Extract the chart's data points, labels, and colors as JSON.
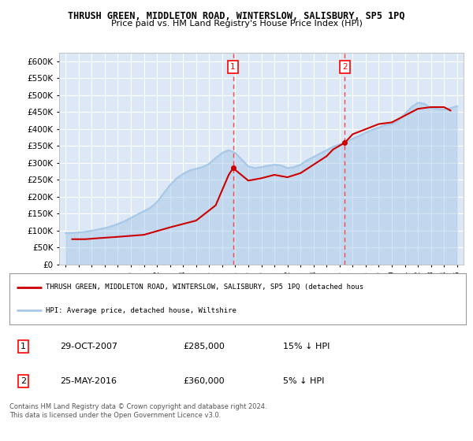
{
  "title": "THRUSH GREEN, MIDDLETON ROAD, WINTERSLOW, SALISBURY, SP5 1PQ",
  "subtitle": "Price paid vs. HM Land Registry's House Price Index (HPI)",
  "bg_color": "#ffffff",
  "plot_bg_color": "#dce8f5",
  "grid_color": "#ffffff",
  "ylim": [
    0,
    625000
  ],
  "yticks": [
    0,
    50000,
    100000,
    150000,
    200000,
    250000,
    300000,
    350000,
    400000,
    450000,
    500000,
    550000,
    600000
  ],
  "ytick_labels": [
    "£0",
    "£50K",
    "£100K",
    "£150K",
    "£200K",
    "£250K",
    "£300K",
    "£350K",
    "£400K",
    "£450K",
    "£500K",
    "£550K",
    "£600K"
  ],
  "marker1_x": 2007.83,
  "marker1_y": 285000,
  "marker2_x": 2016.4,
  "marker2_y": 360000,
  "sale1_date": "29-OCT-2007",
  "sale1_price": "£285,000",
  "sale1_hpi": "15% ↓ HPI",
  "sale2_date": "25-MAY-2016",
  "sale2_price": "£360,000",
  "sale2_hpi": "5% ↓ HPI",
  "legend_line1": "THRUSH GREEN, MIDDLETON ROAD, WINTERSLOW, SALISBURY, SP5 1PQ (detached hous",
  "legend_line2": "HPI: Average price, detached house, Wiltshire",
  "footer": "Contains HM Land Registry data © Crown copyright and database right 2024.\nThis data is licensed under the Open Government Licence v3.0.",
  "hpi_color": "#a8c8e8",
  "price_color": "#cc0000",
  "hpi_x": [
    1995,
    1995.5,
    1996,
    1996.5,
    1997,
    1997.5,
    1998,
    1998.5,
    1999,
    1999.5,
    2000,
    2000.5,
    2001,
    2001.5,
    2002,
    2002.5,
    2003,
    2003.5,
    2004,
    2004.5,
    2005,
    2005.5,
    2006,
    2006.5,
    2007,
    2007.5,
    2008,
    2008.5,
    2009,
    2009.5,
    2010,
    2010.5,
    2011,
    2011.5,
    2012,
    2012.5,
    2013,
    2013.5,
    2014,
    2014.5,
    2015,
    2015.5,
    2016,
    2016.5,
    2017,
    2017.5,
    2018,
    2018.5,
    2019,
    2019.5,
    2020,
    2020.5,
    2021,
    2021.5,
    2022,
    2022.5,
    2023,
    2023.5,
    2024,
    2024.5,
    2025
  ],
  "hpi_y": [
    93000,
    94000,
    95000,
    97000,
    100000,
    104000,
    108000,
    113000,
    120000,
    128000,
    138000,
    148000,
    158000,
    168000,
    185000,
    210000,
    235000,
    255000,
    268000,
    278000,
    283000,
    288000,
    298000,
    315000,
    330000,
    338000,
    330000,
    310000,
    290000,
    285000,
    288000,
    292000,
    295000,
    293000,
    285000,
    288000,
    295000,
    308000,
    318000,
    328000,
    338000,
    348000,
    355000,
    362000,
    372000,
    380000,
    390000,
    398000,
    405000,
    412000,
    415000,
    425000,
    445000,
    465000,
    478000,
    475000,
    462000,
    460000,
    458000,
    462000,
    468000
  ],
  "price_x": [
    1995.5,
    1996.5,
    1997.5,
    1999.0,
    2001.0,
    2003.0,
    2005.0,
    2006.5,
    2007.5,
    2007.83,
    2009.0,
    2010.0,
    2011.0,
    2012.0,
    2013.0,
    2014.0,
    2015.0,
    2015.5,
    2016.4,
    2017.0,
    2018.0,
    2019.0,
    2020.0,
    2021.0,
    2022.0,
    2023.0,
    2024.0,
    2024.5
  ],
  "price_y": [
    75000,
    75000,
    78000,
    82000,
    88000,
    110000,
    130000,
    175000,
    265000,
    285000,
    248000,
    255000,
    265000,
    258000,
    270000,
    295000,
    320000,
    340000,
    360000,
    385000,
    400000,
    415000,
    420000,
    440000,
    460000,
    465000,
    465000,
    455000
  ],
  "xmin": 1994.5,
  "xmax": 2025.5
}
